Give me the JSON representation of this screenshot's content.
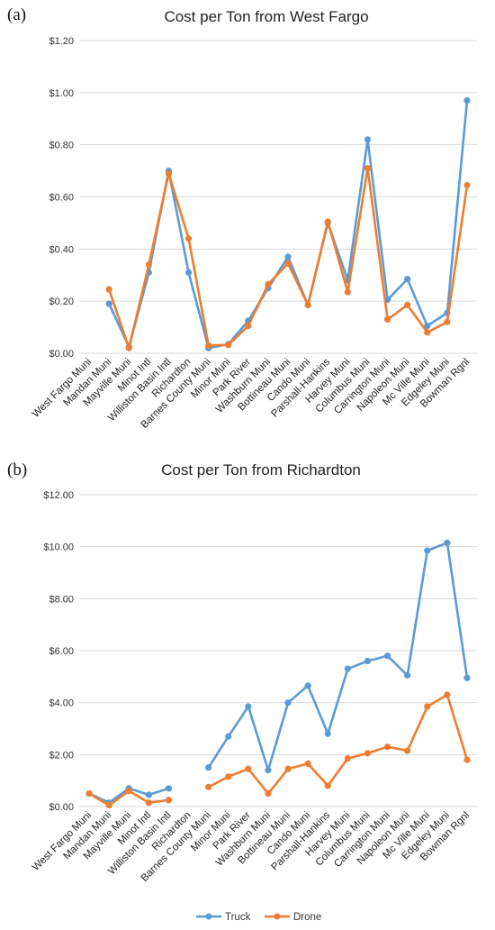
{
  "chart_data": [
    {
      "panel_label": "(a)",
      "type": "line",
      "title": "Cost per Ton from West Fargo",
      "categories": [
        "West Fargo Muni",
        "Mandan Muni",
        "Mayville Muni",
        "Minot Intl",
        "Williston Basin Intl",
        "Richardton",
        "Barnes County Muni",
        "Minor Muni",
        "Park River",
        "Washburn Muni",
        "Bottineau Muni",
        "Cando Muni",
        "Parshall-Hankins",
        "Harvey Muni",
        "Columbus Muni",
        "Carrington Muni",
        "Napoleon Muni",
        "Mc Ville Muni",
        "Edgeley Muni",
        "Bowman Rgnl"
      ],
      "yticks": [
        "$0.00",
        "$0.20",
        "$0.40",
        "$0.60",
        "$0.80",
        "$1.00",
        "$1.20"
      ],
      "ylim": [
        0,
        1.2
      ],
      "series": [
        {
          "name": "Truck",
          "color": "#5b9bd5",
          "values": [
            null,
            0.19,
            0.025,
            0.31,
            0.7,
            0.31,
            0.02,
            0.035,
            0.125,
            0.25,
            0.37,
            0.185,
            0.5,
            0.28,
            0.82,
            0.205,
            0.285,
            0.105,
            0.155,
            0.97
          ]
        },
        {
          "name": "Drone",
          "color": "#ed7d31",
          "values": [
            null,
            0.245,
            0.02,
            0.34,
            0.69,
            0.44,
            0.03,
            0.032,
            0.105,
            0.265,
            0.345,
            0.185,
            0.505,
            0.235,
            0.71,
            0.13,
            0.185,
            0.08,
            0.12,
            0.645
          ]
        }
      ]
    },
    {
      "panel_label": "(b)",
      "type": "line",
      "title": "Cost per Ton from Richardton",
      "categories": [
        "West Fargo Muni",
        "Mandan Muni",
        "Mayville Muni",
        "Minot Intl",
        "Williston Basin Intl",
        "Richardton",
        "Barnes County Muni",
        "Minor Muni",
        "Park River",
        "Washburn Muni",
        "Bottineau Muni",
        "Cando Muni",
        "Parshall-Hankins",
        "Harvey Muni",
        "Columbus Muni",
        "Carrington Muni",
        "Napoleon Muni",
        "Mc Ville Muni",
        "Edgeley Muni",
        "Bowman Rgnl"
      ],
      "yticks": [
        "$0.00",
        "$2.00",
        "$4.00",
        "$6.00",
        "$8.00",
        "$10.00",
        "$12.00"
      ],
      "ylim": [
        0,
        12
      ],
      "series": [
        {
          "name": "Truck",
          "color": "#5b9bd5",
          "values": [
            0.5,
            0.15,
            0.7,
            0.45,
            0.7,
            null,
            1.5,
            2.7,
            3.85,
            1.4,
            4.0,
            4.65,
            2.8,
            5.3,
            5.6,
            5.8,
            5.05,
            9.85,
            10.15,
            4.95
          ]
        },
        {
          "name": "Drone",
          "color": "#ed7d31",
          "values": [
            0.5,
            0.05,
            0.6,
            0.15,
            0.25,
            null,
            0.75,
            1.15,
            1.45,
            0.5,
            1.45,
            1.65,
            0.8,
            1.85,
            2.05,
            2.3,
            2.15,
            3.85,
            4.3,
            1.8
          ]
        }
      ]
    }
  ],
  "legend": [
    {
      "name": "Truck",
      "color": "#5b9bd5"
    },
    {
      "name": "Drone",
      "color": "#ed7d31"
    }
  ]
}
